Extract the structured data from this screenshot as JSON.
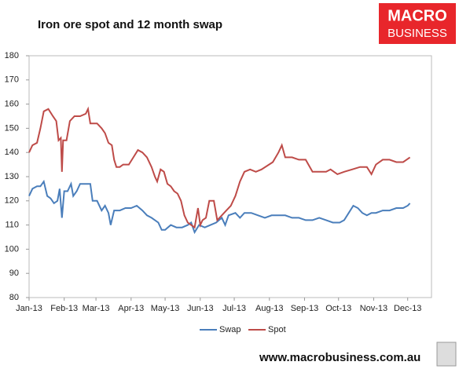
{
  "chart_data": {
    "type": "line",
    "title": "Iron ore spot and 12 month swap",
    "brand": [
      "MACRO",
      "BUSINESS"
    ],
    "footer": "www.macrobusiness.com.au",
    "xlim": [
      0,
      355
    ],
    "xticks": [
      {
        "value": 0,
        "label": "Jan-13"
      },
      {
        "value": 31,
        "label": "Feb-13"
      },
      {
        "value": 59,
        "label": "Mar-13"
      },
      {
        "value": 90,
        "label": "Apr-13"
      },
      {
        "value": 120,
        "label": "May-13"
      },
      {
        "value": 151,
        "label": "Jun-13"
      },
      {
        "value": 181,
        "label": "Jul-13"
      },
      {
        "value": 212,
        "label": "Aug-13"
      },
      {
        "value": 243,
        "label": "Sep-13"
      },
      {
        "value": 273,
        "label": "Oct-13"
      },
      {
        "value": 304,
        "label": "Nov-13"
      },
      {
        "value": 334,
        "label": "Dec-13"
      }
    ],
    "ylim": [
      80,
      180
    ],
    "yticks": [
      80,
      90,
      100,
      110,
      120,
      130,
      140,
      150,
      160,
      170,
      180
    ],
    "legend": "bottom",
    "series": [
      {
        "name": "Swap",
        "color": "#4a7ebb",
        "x": [
          0,
          3,
          7,
          10,
          13,
          16,
          19,
          22,
          25,
          27,
          29,
          31,
          34,
          37,
          39,
          42,
          45,
          50,
          54,
          56,
          60,
          64,
          67,
          70,
          72,
          75,
          80,
          85,
          90,
          95,
          100,
          104,
          108,
          111,
          114,
          117,
          120,
          125,
          130,
          135,
          140,
          143,
          146,
          150,
          155,
          160,
          165,
          170,
          173,
          176,
          182,
          186,
          190,
          196,
          202,
          208,
          214,
          220,
          226,
          232,
          238,
          244,
          250,
          256,
          262,
          268,
          274,
          278,
          282,
          286,
          290,
          294,
          298,
          302,
          306,
          312,
          318,
          324,
          330,
          334,
          336
        ],
        "values": [
          122,
          125,
          126,
          126,
          128,
          122,
          121,
          119,
          120,
          125,
          113,
          124,
          124,
          127,
          122,
          124,
          127,
          127,
          127,
          120,
          120,
          116,
          118,
          115,
          110,
          116,
          116,
          117,
          117,
          118,
          116,
          114,
          113,
          112,
          111,
          108,
          108,
          110,
          109,
          109,
          110,
          111,
          107,
          110,
          109,
          110,
          111,
          113,
          110,
          114,
          115,
          113,
          115,
          115,
          114,
          113,
          114,
          114,
          114,
          113,
          113,
          112,
          112,
          113,
          112,
          111,
          111,
          112,
          115,
          118,
          117,
          115,
          114,
          115,
          115,
          116,
          116,
          117,
          117,
          118,
          119
        ]
      },
      {
        "name": "Spot",
        "color": "#be4b48",
        "x": [
          0,
          3,
          7,
          10,
          13,
          17,
          21,
          24,
          26,
          28,
          29,
          30,
          33,
          36,
          40,
          45,
          50,
          52,
          54,
          60,
          64,
          67,
          70,
          73,
          75,
          77,
          80,
          83,
          88,
          92,
          96,
          100,
          104,
          108,
          111,
          113,
          116,
          119,
          122,
          125,
          128,
          131,
          134,
          137,
          140,
          143,
          146,
          149,
          151,
          153,
          156,
          159,
          163,
          166,
          170,
          174,
          178,
          182,
          186,
          190,
          195,
          200,
          205,
          215,
          220,
          223,
          226,
          232,
          238,
          244,
          250,
          255,
          262,
          266,
          272,
          278,
          285,
          292,
          298,
          302,
          306,
          312,
          318,
          324,
          330,
          333,
          336
        ],
        "values": [
          140,
          143,
          144,
          150,
          157,
          158,
          155,
          153,
          145,
          146,
          132,
          145,
          145,
          153,
          155,
          155,
          156,
          158,
          152,
          152,
          150,
          148,
          144,
          143,
          137,
          134,
          134,
          135,
          135,
          138,
          141,
          140,
          138,
          134,
          130,
          128,
          133,
          132,
          127,
          126,
          124,
          123,
          120,
          114,
          111,
          110,
          109,
          117,
          110,
          112,
          113,
          120,
          120,
          112,
          114,
          116,
          118,
          122,
          128,
          132,
          133,
          132,
          133,
          136,
          140,
          143,
          138,
          138,
          137,
          137,
          132,
          132,
          132,
          133,
          131,
          132,
          133,
          134,
          134,
          131,
          135,
          137,
          137,
          136,
          136,
          137,
          138
        ]
      }
    ]
  }
}
